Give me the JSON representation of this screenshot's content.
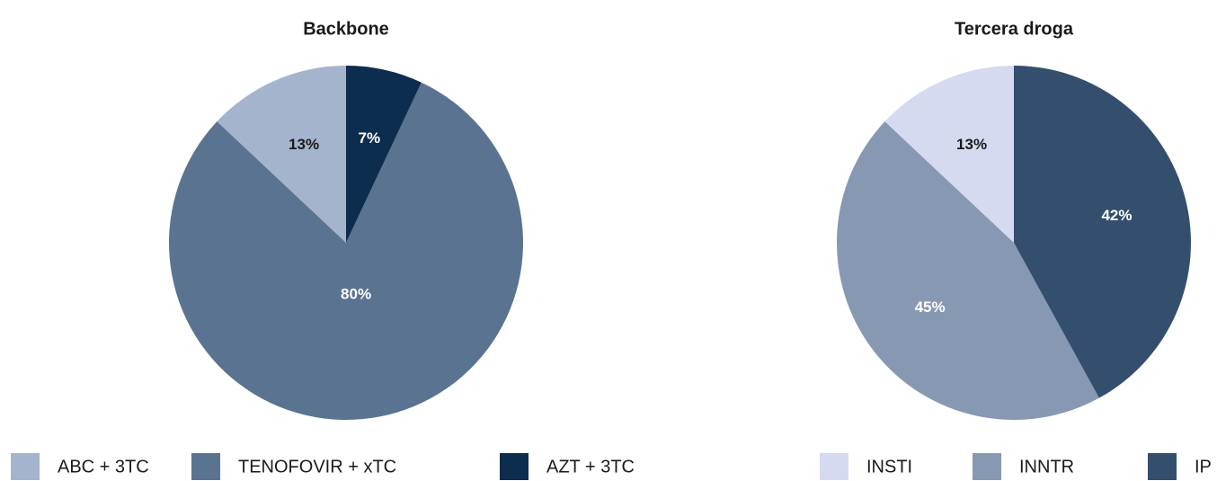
{
  "chart_data": [
    {
      "type": "pie",
      "title": "Backbone",
      "categories": [
        "ABC + 3TC",
        "TENOFOVIR + xTC",
        "AZT + 3TC"
      ],
      "values": [
        13,
        80,
        7
      ],
      "value_labels": [
        "13%",
        "80%",
        "7%"
      ],
      "colors": [
        "#a4b4cc",
        "#5a7391",
        "#0d2d4f"
      ]
    },
    {
      "type": "pie",
      "title": "Tercera droga",
      "categories": [
        "INSTI",
        "INNTR",
        "IP"
      ],
      "values": [
        13,
        45,
        42
      ],
      "value_labels": [
        "13%",
        "45%",
        "42%"
      ],
      "colors": [
        "#d5daf0",
        "#8798b3",
        "#344f6d"
      ]
    }
  ]
}
